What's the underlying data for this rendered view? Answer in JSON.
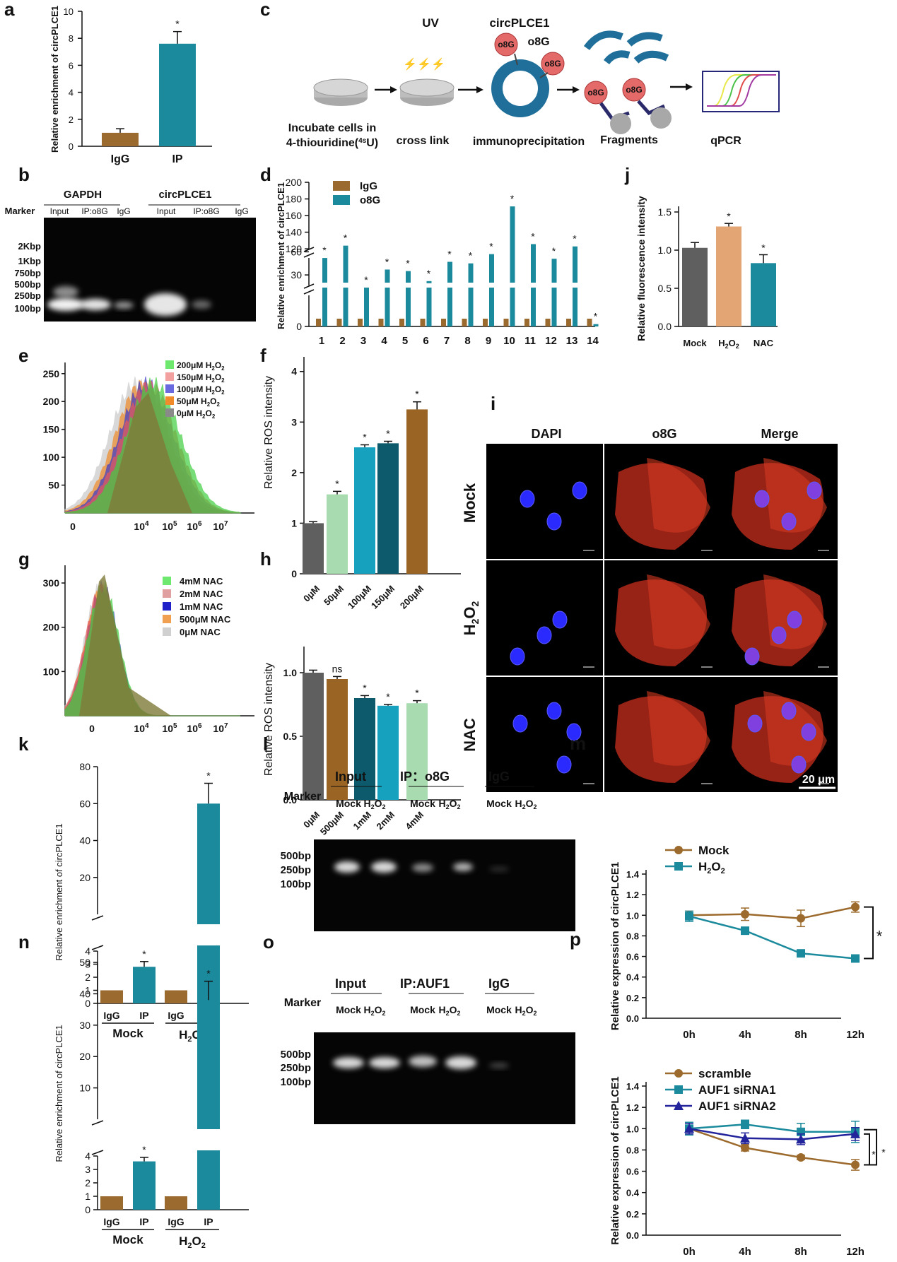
{
  "colors": {
    "igg": "#9b6a2e",
    "ip": "#1b8a9c",
    "mock_gray": "#5f5f5f",
    "h2o2_tan": "#e3a574",
    "light_green": "#a8dcb0",
    "mid_teal": "#16a1be",
    "dark_teal": "#0c5a6c",
    "brown": "#9a6424",
    "navy": "#1f1f8c"
  },
  "panels": {
    "a": {
      "letter": "a",
      "chart_data": {
        "type": "bar",
        "categories": [
          "IgG",
          "IP"
        ],
        "values": [
          1.0,
          7.6
        ],
        "errors": [
          0.3,
          0.9
        ],
        "sig": [
          "",
          "*"
        ],
        "ylabel": "Relative enrichment of circPLCE1",
        "ylim": [
          0,
          10
        ],
        "yticks": [
          "0",
          "2",
          "4",
          "6",
          "8",
          "10"
        ]
      }
    },
    "b": {
      "letter": "b",
      "marker": "Marker",
      "groups": [
        "GAPDH",
        "circPLCE1"
      ],
      "lanes": [
        "Input",
        "IP:o8G",
        "IgG",
        "Input",
        "IP:o8G",
        "IgG"
      ],
      "ladder": [
        "2Kbp",
        "1Kbp",
        "750bp",
        "500bp",
        "250bp",
        "100bp"
      ]
    },
    "c": {
      "letter": "c",
      "uv": "UV",
      "circ": "circPLCE1",
      "o8g": "o8G",
      "steps": [
        "Incubate cells in",
        "4-thiouridine(",
        "4s",
        "U)",
        "cross link",
        "immunoprecipitation",
        "Fragments",
        "qPCR"
      ]
    },
    "d": {
      "letter": "d",
      "chart_data": {
        "type": "bar",
        "categories": [
          "1",
          "2",
          "3",
          "4",
          "5",
          "6",
          "7",
          "8",
          "9",
          "10",
          "11",
          "12",
          "13",
          "14"
        ],
        "series": [
          {
            "name": "IgG",
            "values": [
              1,
              1,
              1,
              1,
              1,
              1,
              1,
              1,
              1,
              1,
              1,
              1,
              1,
              1
            ]
          },
          {
            "name": "o8G",
            "values": [
              52,
              68,
              5,
              37,
              35,
              22,
              47,
              45,
              57,
              171,
              70,
              51,
              67,
              0.3
            ]
          }
        ],
        "ylabel": "Relative enrichment of circPLCE1",
        "yticks": [
          "0",
          "30",
          "60",
          "120",
          "140",
          "160",
          "180",
          "200"
        ]
      }
    },
    "e": {
      "letter": "e",
      "legend": [
        {
          "c": "200μM",
          "u": "H",
          "s": "2",
          "o": "O",
          "s2": "2"
        },
        {
          "c": "150μM",
          "u": "H",
          "s": "2",
          "o": "O",
          "s2": "2"
        },
        {
          "c": "100μM",
          "u": "H",
          "s": "2",
          "o": "O",
          "s2": "2"
        },
        {
          "c": "50μM",
          "u": "H",
          "s": "2",
          "o": "O",
          "s2": "2"
        },
        {
          "c": "0μM",
          "u": "H",
          "s": "2",
          "o": "O",
          "s2": "2"
        }
      ],
      "yticks": [
        "250",
        "200",
        "150",
        "100",
        "50"
      ],
      "xticks": [
        "0",
        "10",
        "10",
        "10",
        "10"
      ]
    },
    "f": {
      "letter": "f",
      "chart_data": {
        "type": "bar",
        "categories": [
          "0μM",
          "50μM",
          "100μM",
          "150μM",
          "200μM"
        ],
        "values": [
          1.0,
          1.57,
          2.5,
          2.58,
          3.25
        ],
        "errors": [
          0.03,
          0.06,
          0.05,
          0.04,
          0.15
        ],
        "sig": [
          "",
          "*",
          "*",
          "*",
          "*"
        ],
        "ylabel": "Relative ROS intensity",
        "ylim": [
          0,
          4
        ],
        "yticks": [
          "0",
          "1",
          "2",
          "3",
          "4"
        ]
      }
    },
    "g": {
      "letter": "g",
      "legend": [
        "4mM  NAC",
        "2mM  NAC",
        "1mM  NAC",
        "500μM  NAC",
        "0μM  NAC"
      ],
      "yticks": [
        "300",
        "200",
        "100"
      ]
    },
    "h": {
      "letter": "h",
      "chart_data": {
        "type": "bar",
        "categories": [
          "0μM",
          "500μM",
          "1mM",
          "2mM",
          "4mM"
        ],
        "values": [
          1.0,
          0.95,
          0.8,
          0.74,
          0.76
        ],
        "errors": [
          0.02,
          0.02,
          0.02,
          0.01,
          0.02
        ],
        "sig": [
          "",
          "ns",
          "*",
          "*",
          "*"
        ],
        "ylabel": "Relative ROS intensity",
        "ylim": [
          0,
          1.1
        ],
        "yticks": [
          "0.0",
          "0.5",
          "1.0"
        ]
      }
    },
    "i": {
      "letter": "i",
      "cols": [
        "DAPI",
        "o8G",
        "Merge"
      ],
      "rows": [
        "Mock",
        "NAC"
      ],
      "h2o2": {
        "h": "H",
        "s": "2",
        "o": "O",
        "s2": "2"
      },
      "scale": "20 μm"
    },
    "j": {
      "letter": "j",
      "chart_data": {
        "type": "bar",
        "categories": [
          "Mock",
          "H2O2",
          "NAC"
        ],
        "values": [
          1.03,
          1.31,
          0.83
        ],
        "errors": [
          0.07,
          0.04,
          0.11
        ],
        "sig": [
          "",
          "*",
          "*"
        ],
        "ylabel": "Relative fluorescence intensity",
        "ylim": [
          0,
          1.5
        ],
        "yticks": [
          "0.0",
          "0.5",
          "1.0",
          "1.5"
        ]
      }
    },
    "k": {
      "letter": "k",
      "chart_data": {
        "type": "bar",
        "categories": [
          "IgG",
          "IP",
          "IgG",
          "IP"
        ],
        "groups": [
          "Mock",
          "H2O2"
        ],
        "values": [
          1,
          2.8,
          1,
          60
        ],
        "errors": [
          0,
          0.4,
          0,
          11
        ],
        "sig": [
          "",
          "*",
          "",
          "*"
        ],
        "ylabel": "Relative enrichment of circPLCE1",
        "yticks_low": [
          "0",
          "1",
          "2",
          "3",
          "4"
        ],
        "yticks_high": [
          "20",
          "40",
          "60",
          "80"
        ]
      }
    },
    "l": {
      "letter": "l",
      "marker": "Marker",
      "groups": [
        "Input",
        "IP：o8G",
        "IgG"
      ],
      "lanes": [
        "Mock",
        "Mock",
        "Mock"
      ],
      "ladder": [
        "500bp",
        "250bp",
        "100bp"
      ]
    },
    "m": {
      "letter": "m",
      "chart_data": {
        "type": "line",
        "x": [
          "0h",
          "4h",
          "8h",
          "12h"
        ],
        "series": [
          {
            "name": "Mock",
            "values": [
              1.0,
              1.01,
              0.97,
              1.08
            ],
            "errors": [
              0.04,
              0.06,
              0.08,
              0.05
            ]
          },
          {
            "name": "H2O2",
            "values": [
              0.99,
              0.85,
              0.63,
              0.58
            ],
            "errors": [
              0.05,
              0.02,
              0.01,
              0.01
            ]
          }
        ],
        "ylabel": "Relative  expression  of circPLCE1",
        "ylim": [
          0,
          1.4
        ],
        "yticks": [
          "0.0",
          "0.2",
          "0.4",
          "0.6",
          "0.8",
          "1.0",
          "1.2",
          "1.4"
        ],
        "sig": "*"
      }
    },
    "n": {
      "letter": "n",
      "chart_data": {
        "type": "bar",
        "categories": [
          "IgG",
          "IP",
          "IgG",
          "IP"
        ],
        "groups": [
          "Mock",
          "H2O2"
        ],
        "values": [
          1,
          3.6,
          1,
          38
        ],
        "errors": [
          0,
          0.3,
          0,
          6
        ],
        "sig": [
          "",
          "*",
          "",
          "*"
        ],
        "ylabel": "Relative enrichment of circPLCE1",
        "yticks_low": [
          "0",
          "1",
          "2",
          "3",
          "4"
        ],
        "yticks_high": [
          "10",
          "20",
          "30",
          "40",
          "50"
        ]
      }
    },
    "o": {
      "letter": "o",
      "marker": "Marker",
      "groups": [
        "Input",
        "IP:AUF1",
        "IgG"
      ],
      "lanes": [
        "Mock",
        "Mock",
        "Mock"
      ],
      "ladder": [
        "500bp",
        "250bp",
        "100bp"
      ]
    },
    "p": {
      "letter": "p",
      "chart_data": {
        "type": "line",
        "x": [
          "0h",
          "4h",
          "8h",
          "12h"
        ],
        "series": [
          {
            "name": "scramble",
            "values": [
              1.0,
              0.82,
              0.73,
              0.66
            ],
            "errors": [
              0.05,
              0.03,
              0.02,
              0.05
            ]
          },
          {
            "name": "AUF1 siRNA1",
            "values": [
              1.0,
              1.04,
              0.97,
              0.97
            ],
            "errors": [
              0.06,
              0.04,
              0.08,
              0.1
            ]
          },
          {
            "name": "AUF1 siRNA2",
            "values": [
              1.0,
              0.91,
              0.9,
              0.95
            ],
            "errors": [
              0.05,
              0.05,
              0.05,
              0.06
            ]
          }
        ],
        "ylabel": "Relative  expression  of circPLCE1",
        "ylim": [
          0,
          1.4
        ],
        "yticks": [
          "0.0",
          "0.2",
          "0.4",
          "0.6",
          "0.8",
          "1.0",
          "1.2",
          "1.4"
        ],
        "sig": [
          "*",
          "*"
        ]
      }
    }
  }
}
